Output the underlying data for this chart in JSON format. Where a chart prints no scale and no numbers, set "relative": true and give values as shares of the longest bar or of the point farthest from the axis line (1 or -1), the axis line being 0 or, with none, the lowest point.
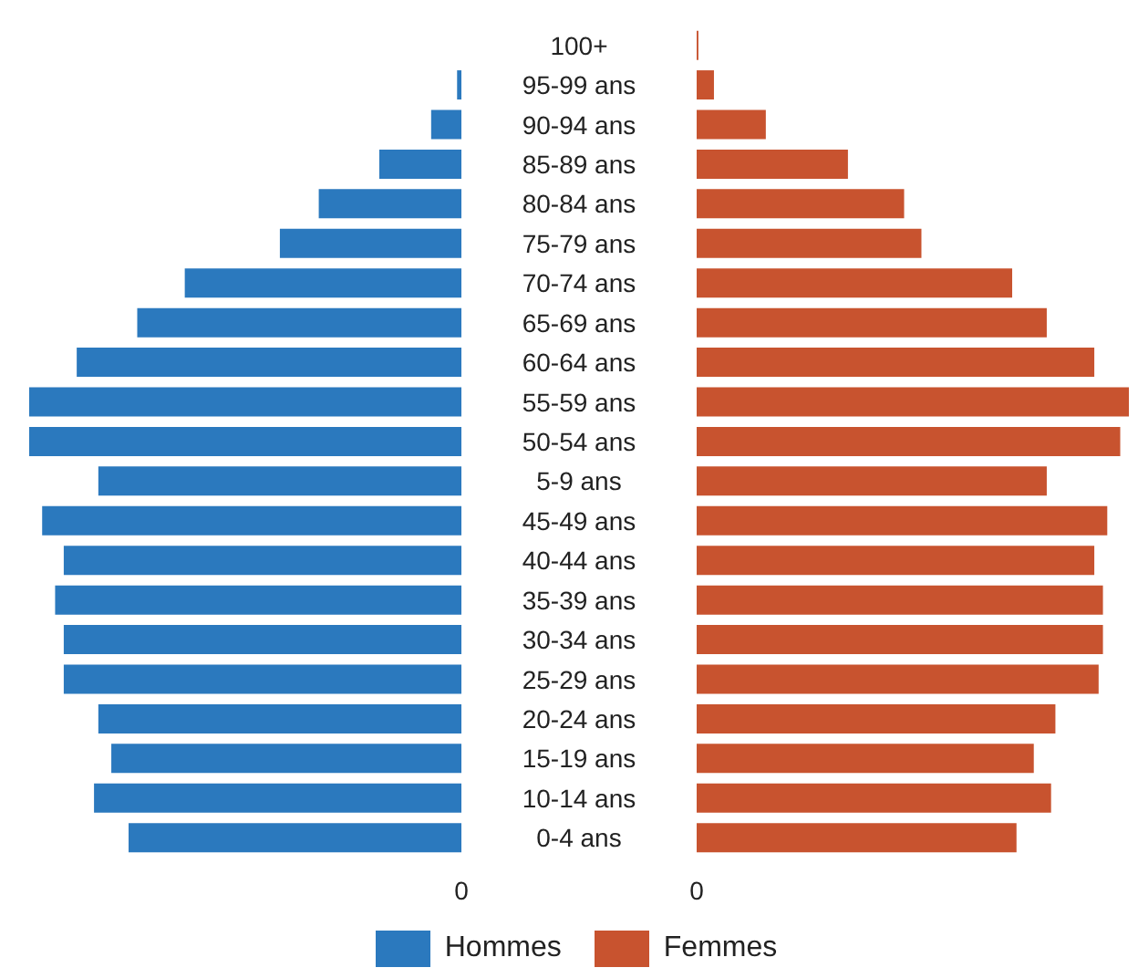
{
  "chart_data": [
    {
      "type": "bar",
      "orientation": "horizontal",
      "relative": true,
      "legend": "bottom",
      "categories": [
        "100+",
        "95-99 ans",
        "90-94 ans",
        "85-89 ans",
        "80-84 ans",
        "75-79 ans",
        "70-74 ans",
        "65-69 ans",
        "60-64 ans",
        "55-59 ans",
        "50-54 ans",
        "5-9 ans",
        "45-49 ans",
        "40-44 ans",
        "35-39 ans",
        "30-34 ans",
        "25-29 ans",
        "20-24 ans",
        "15-19 ans",
        "10-14 ans",
        "0-4 ans"
      ],
      "series": [
        {
          "name": "Hommes",
          "color": "#2b79be",
          "values": [
            0,
            0.01,
            0.07,
            0.19,
            0.33,
            0.42,
            0.64,
            0.75,
            0.89,
            1,
            1,
            0.84,
            0.97,
            0.92,
            0.94,
            0.92,
            0.92,
            0.84,
            0.81,
            0.85,
            0.77
          ]
        }
      ],
      "annotations": [
        "0"
      ]
    },
    {
      "type": "bar",
      "orientation": "horizontal",
      "relative": true,
      "legend": "bottom",
      "categories": [
        null,
        null,
        null,
        null,
        null,
        null,
        null,
        null,
        null,
        null,
        null,
        null,
        null,
        null,
        null,
        null,
        null,
        null,
        null,
        null,
        null
      ],
      "series": [
        {
          "name": "Femmes",
          "color": "#c8532f",
          "values": [
            0.004,
            0.04,
            0.16,
            0.35,
            0.48,
            0.52,
            0.73,
            0.81,
            0.92,
            1,
            0.98,
            0.81,
            0.95,
            0.92,
            0.94,
            0.94,
            0.93,
            0.83,
            0.78,
            0.82,
            0.74
          ]
        }
      ],
      "annotations": [
        "0"
      ]
    }
  ]
}
